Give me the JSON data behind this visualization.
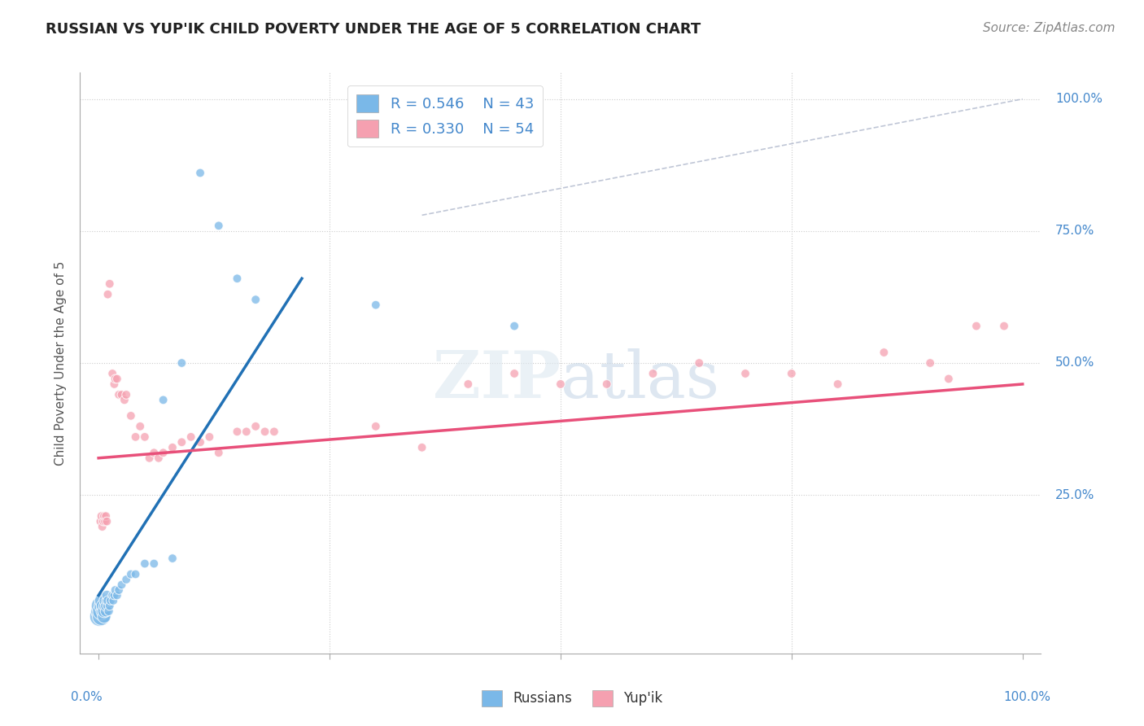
{
  "title": "RUSSIAN VS YUP'IK CHILD POVERTY UNDER THE AGE OF 5 CORRELATION CHART",
  "source": "Source: ZipAtlas.com",
  "ylabel": "Child Poverty Under the Age of 5",
  "xlim": [
    -0.02,
    1.02
  ],
  "ylim": [
    -0.05,
    1.05
  ],
  "grid_color": "#cccccc",
  "background_color": "#ffffff",
  "russian_color": "#7ab8e8",
  "yupik_color": "#f5a0b0",
  "russian_line_color": "#2171b5",
  "yupik_line_color": "#e8507a",
  "diagonal_color": "#b0b8cc",
  "right_label_color": "#4488cc",
  "tick_label_color": "#4488cc",
  "russian_points": [
    [
      0.001,
      0.02
    ],
    [
      0.002,
      0.03
    ],
    [
      0.002,
      0.04
    ],
    [
      0.003,
      0.02
    ],
    [
      0.003,
      0.03
    ],
    [
      0.004,
      0.04
    ],
    [
      0.004,
      0.05
    ],
    [
      0.005,
      0.03
    ],
    [
      0.005,
      0.04
    ],
    [
      0.006,
      0.02
    ],
    [
      0.006,
      0.03
    ],
    [
      0.007,
      0.04
    ],
    [
      0.007,
      0.05
    ],
    [
      0.008,
      0.03
    ],
    [
      0.008,
      0.04
    ],
    [
      0.009,
      0.05
    ],
    [
      0.009,
      0.06
    ],
    [
      0.01,
      0.04
    ],
    [
      0.01,
      0.05
    ],
    [
      0.011,
      0.03
    ],
    [
      0.012,
      0.04
    ],
    [
      0.013,
      0.05
    ],
    [
      0.015,
      0.06
    ],
    [
      0.016,
      0.05
    ],
    [
      0.017,
      0.06
    ],
    [
      0.018,
      0.07
    ],
    [
      0.02,
      0.06
    ],
    [
      0.022,
      0.07
    ],
    [
      0.025,
      0.08
    ],
    [
      0.03,
      0.09
    ],
    [
      0.035,
      0.1
    ],
    [
      0.04,
      0.1
    ],
    [
      0.05,
      0.12
    ],
    [
      0.06,
      0.12
    ],
    [
      0.08,
      0.13
    ],
    [
      0.07,
      0.43
    ],
    [
      0.09,
      0.5
    ],
    [
      0.11,
      0.86
    ],
    [
      0.13,
      0.76
    ],
    [
      0.15,
      0.66
    ],
    [
      0.17,
      0.62
    ],
    [
      0.3,
      0.61
    ],
    [
      0.45,
      0.57
    ]
  ],
  "russian_sizes": [
    300,
    280,
    260,
    250,
    240,
    200,
    180,
    160,
    150,
    140,
    130,
    120,
    110,
    100,
    90,
    85,
    80,
    75,
    70,
    65,
    60,
    60,
    60,
    60,
    60,
    60,
    60,
    60,
    60,
    60,
    60,
    60,
    60,
    60,
    60,
    60,
    60,
    60,
    60,
    60,
    60,
    60,
    60
  ],
  "yupik_points": [
    [
      0.002,
      0.2
    ],
    [
      0.003,
      0.21
    ],
    [
      0.004,
      0.19
    ],
    [
      0.005,
      0.2
    ],
    [
      0.006,
      0.21
    ],
    [
      0.007,
      0.2
    ],
    [
      0.008,
      0.21
    ],
    [
      0.009,
      0.2
    ],
    [
      0.01,
      0.63
    ],
    [
      0.012,
      0.65
    ],
    [
      0.015,
      0.48
    ],
    [
      0.017,
      0.46
    ],
    [
      0.018,
      0.47
    ],
    [
      0.02,
      0.47
    ],
    [
      0.022,
      0.44
    ],
    [
      0.025,
      0.44
    ],
    [
      0.028,
      0.43
    ],
    [
      0.03,
      0.44
    ],
    [
      0.035,
      0.4
    ],
    [
      0.04,
      0.36
    ],
    [
      0.045,
      0.38
    ],
    [
      0.05,
      0.36
    ],
    [
      0.055,
      0.32
    ],
    [
      0.06,
      0.33
    ],
    [
      0.065,
      0.32
    ],
    [
      0.07,
      0.33
    ],
    [
      0.08,
      0.34
    ],
    [
      0.09,
      0.35
    ],
    [
      0.1,
      0.36
    ],
    [
      0.11,
      0.35
    ],
    [
      0.12,
      0.36
    ],
    [
      0.13,
      0.33
    ],
    [
      0.15,
      0.37
    ],
    [
      0.16,
      0.37
    ],
    [
      0.17,
      0.38
    ],
    [
      0.18,
      0.37
    ],
    [
      0.19,
      0.37
    ],
    [
      0.3,
      0.38
    ],
    [
      0.35,
      0.34
    ],
    [
      0.4,
      0.46
    ],
    [
      0.45,
      0.48
    ],
    [
      0.5,
      0.46
    ],
    [
      0.55,
      0.46
    ],
    [
      0.6,
      0.48
    ],
    [
      0.65,
      0.5
    ],
    [
      0.7,
      0.48
    ],
    [
      0.75,
      0.48
    ],
    [
      0.8,
      0.46
    ],
    [
      0.85,
      0.52
    ],
    [
      0.9,
      0.5
    ],
    [
      0.92,
      0.47
    ],
    [
      0.95,
      0.57
    ],
    [
      0.98,
      0.57
    ]
  ],
  "yupik_sizes": [
    60,
    60,
    60,
    60,
    60,
    60,
    60,
    60,
    60,
    60,
    60,
    60,
    60,
    60,
    60,
    60,
    60,
    60,
    60,
    60,
    60,
    60,
    60,
    60,
    60,
    60,
    60,
    60,
    60,
    60,
    60,
    60,
    60,
    60,
    60,
    60,
    60,
    60,
    60,
    60,
    60,
    60,
    60,
    60,
    60,
    60,
    60,
    60,
    60,
    60,
    60,
    60,
    60
  ],
  "russian_line": {
    "x0": 0.0,
    "y0": 0.06,
    "x1": 0.22,
    "y1": 0.66
  },
  "yupik_line": {
    "x0": 0.0,
    "y0": 0.32,
    "x1": 1.0,
    "y1": 0.46
  },
  "diagonal_line": {
    "x0": 0.35,
    "y0": 0.78,
    "x1": 1.0,
    "y1": 1.0
  }
}
